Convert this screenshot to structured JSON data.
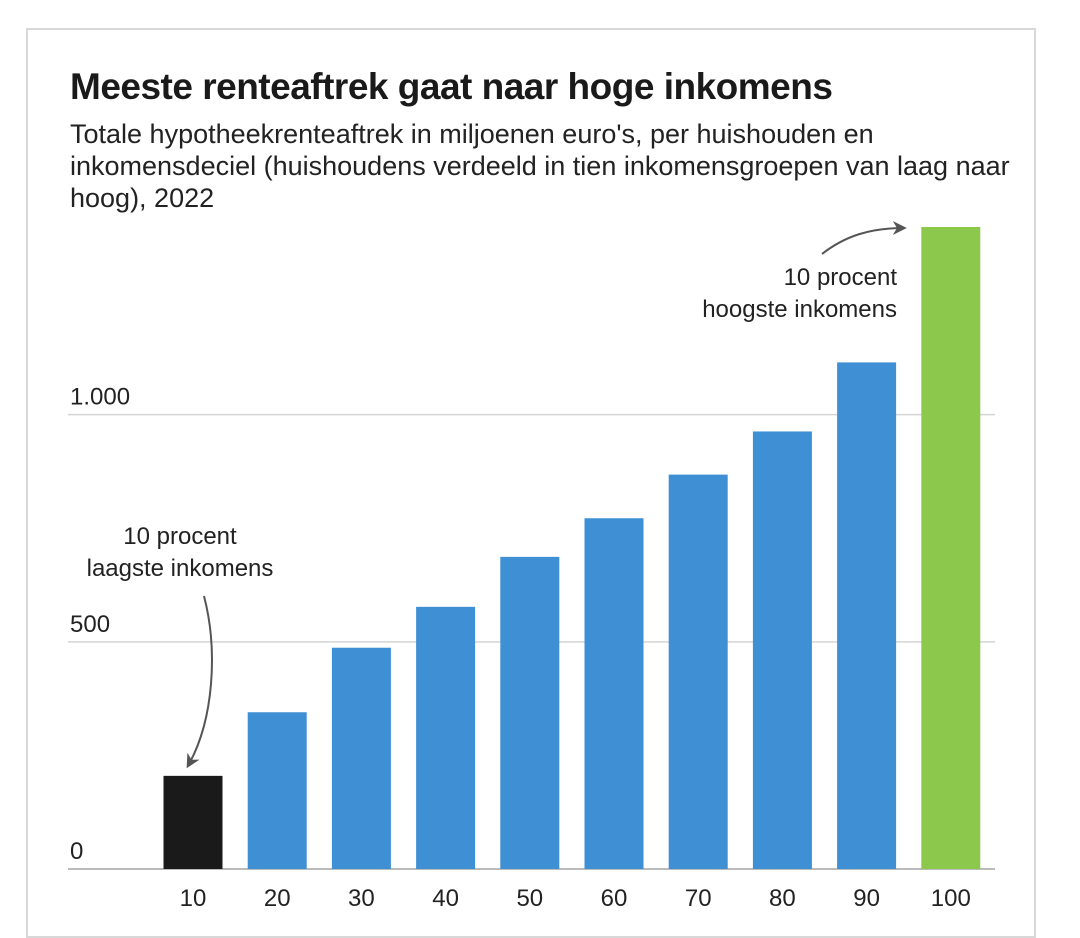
{
  "chart_data": {
    "type": "bar",
    "title": "Meeste renteaftrek gaat naar hoge inkomens",
    "subtitle": "Totale hypotheekrenteaftrek in miljoenen euro's, per huishouden en inkomensdeciel (huishoudens verdeeld in tien inkomensgroepen van laag naar hoog), 2022",
    "categories": [
      "10",
      "20",
      "30",
      "40",
      "50",
      "60",
      "70",
      "80",
      "90",
      "100"
    ],
    "values": [
      205,
      345,
      487,
      577,
      687,
      772,
      868,
      963,
      1115,
      1413
    ],
    "bar_colors": [
      "#1a1a1a",
      "#3f8fd4",
      "#3f8fd4",
      "#3f8fd4",
      "#3f8fd4",
      "#3f8fd4",
      "#3f8fd4",
      "#3f8fd4",
      "#3f8fd4",
      "#8cc84b"
    ],
    "ylim": [
      0,
      1413
    ],
    "yticks": [
      0,
      500,
      1000
    ],
    "ytick_labels": [
      "0",
      "500",
      "1.000"
    ],
    "grid": true,
    "xlabel": "",
    "ylabel": "",
    "annotations": [
      {
        "lines": [
          "10 procent",
          "laagste inkomens"
        ],
        "target": "10"
      },
      {
        "lines": [
          "10 procent",
          "hoogste inkomens"
        ],
        "target": "100"
      }
    ]
  },
  "colors": {
    "gridline": "#d4d4d4",
    "axis": "#bbbbbb",
    "arrow": "#555555"
  }
}
